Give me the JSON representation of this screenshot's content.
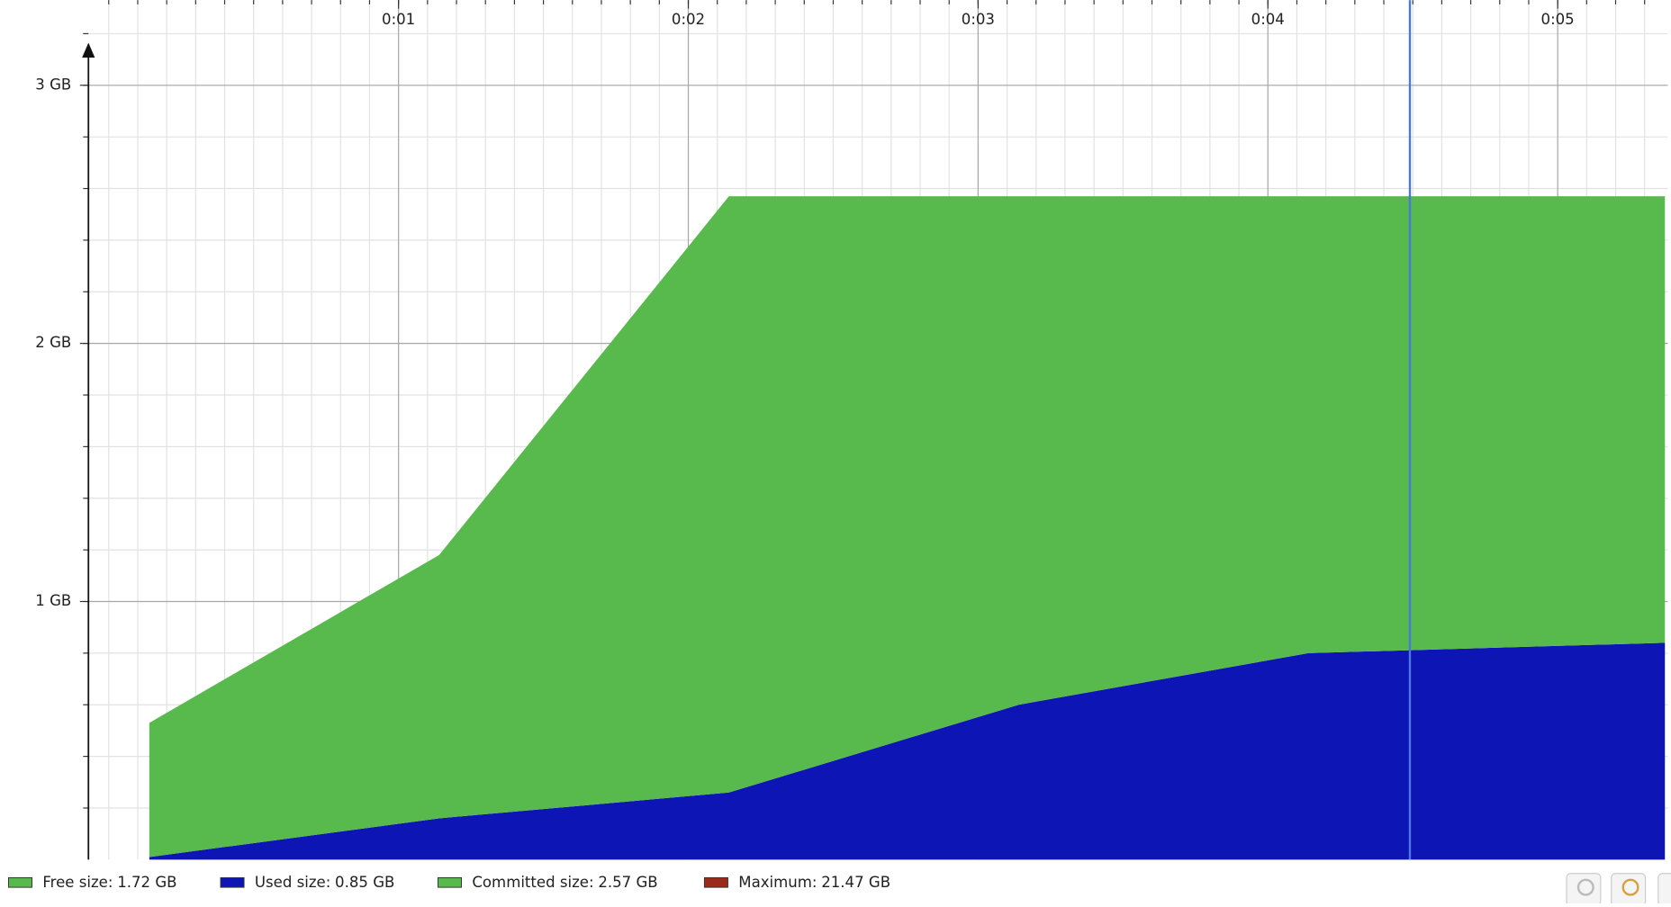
{
  "chart_data": {
    "type": "stacked_area",
    "x": [
      0.14,
      1.14,
      2.14,
      3.14,
      4.14,
      5.37
    ],
    "series": [
      {
        "name": "Used size:",
        "color": "#0d16b5",
        "values": [
          0.01,
          0.16,
          0.26,
          0.6,
          0.8,
          0.84
        ]
      },
      {
        "name": "Free size:",
        "color": "#58b94c",
        "values": [
          0.52,
          1.02,
          2.31,
          1.97,
          1.77,
          1.73
        ]
      }
    ],
    "legend": [
      {
        "label": "Free size:",
        "value": "1.72 GB",
        "color": "#58b94c"
      },
      {
        "label": "Used size:",
        "value": "0.85 GB",
        "color": "#0d16b5"
      },
      {
        "label": "Committed size:",
        "value": "2.57 GB",
        "color": "#58b94c"
      },
      {
        "label": "Maximum:",
        "value": "21.47 GB",
        "color": "#9b2a1a"
      }
    ],
    "xlim": [
      -0.07,
      5.38
    ],
    "ylim": [
      0,
      3.33
    ],
    "xticks": [
      {
        "value": 1,
        "label": "0:01"
      },
      {
        "value": 2,
        "label": "0:02"
      },
      {
        "value": 3,
        "label": "0:03"
      },
      {
        "value": 4,
        "label": "0:04"
      },
      {
        "value": 5,
        "label": "0:05"
      }
    ],
    "yticks": [
      {
        "value": 1,
        "label": "1 GB"
      },
      {
        "value": 2,
        "label": "2 GB"
      },
      {
        "value": 3,
        "label": "3 GB"
      }
    ],
    "cursor_x": 4.49,
    "cursor_color": "#4a78e0",
    "grid": true
  }
}
